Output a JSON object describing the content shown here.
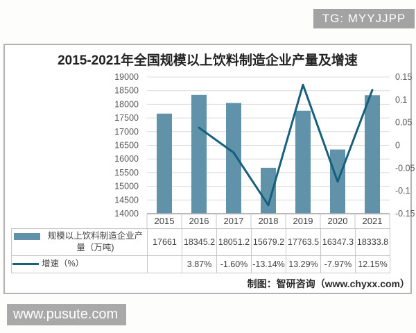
{
  "badges": {
    "tg": "TG: MYYJJPP",
    "watermark": "www.pusute.com"
  },
  "source_note": "制图：智研咨询（www.chyxx.com）",
  "chart_data": {
    "type": "bar+line combo with data table",
    "title": "2015-2021年全国规模以上饮料制造企业产量及增速",
    "categories": [
      "2015",
      "2016",
      "2017",
      "2018",
      "2019",
      "2020",
      "2021"
    ],
    "series": [
      {
        "name": "规模以上饮料制造企业产量（万吨)",
        "type": "bar",
        "axis": "left",
        "color": "#6093a9",
        "values": [
          17661,
          18345.2,
          18051.2,
          15679.2,
          17763.5,
          16347.3,
          18333.8
        ],
        "display_values": [
          "17661",
          "18345.2",
          "18051.2",
          "15679.2",
          "17763.5",
          "16347.3",
          "18333.8"
        ]
      },
      {
        "name": "增速（%）",
        "type": "line",
        "axis": "right",
        "color": "#16607e",
        "values": [
          null,
          0.0387,
          -0.016,
          -0.1314,
          0.1329,
          -0.0797,
          0.1215
        ],
        "display_values": [
          "",
          "3.87%",
          "-1.60%",
          "-13.14%",
          "13.29%",
          "-7.97%",
          "12.15%"
        ]
      }
    ],
    "left_axis": {
      "min": 14000,
      "max": 19000,
      "ticks": [
        "19000",
        "18500",
        "18000",
        "17500",
        "17000",
        "16500",
        "16000",
        "15500",
        "15000",
        "14500",
        "14000"
      ]
    },
    "right_axis": {
      "min": -0.15,
      "max": 0.15,
      "ticks": [
        "0.15",
        "0.1",
        "0.05",
        "0",
        "-0.05",
        "-0.1",
        "-0.15"
      ]
    },
    "grid": true,
    "legend_position": "table-left",
    "colors": {
      "gridline": "#dcdcdc",
      "axis_line": "#adadad",
      "axis_text": "#595959"
    }
  }
}
